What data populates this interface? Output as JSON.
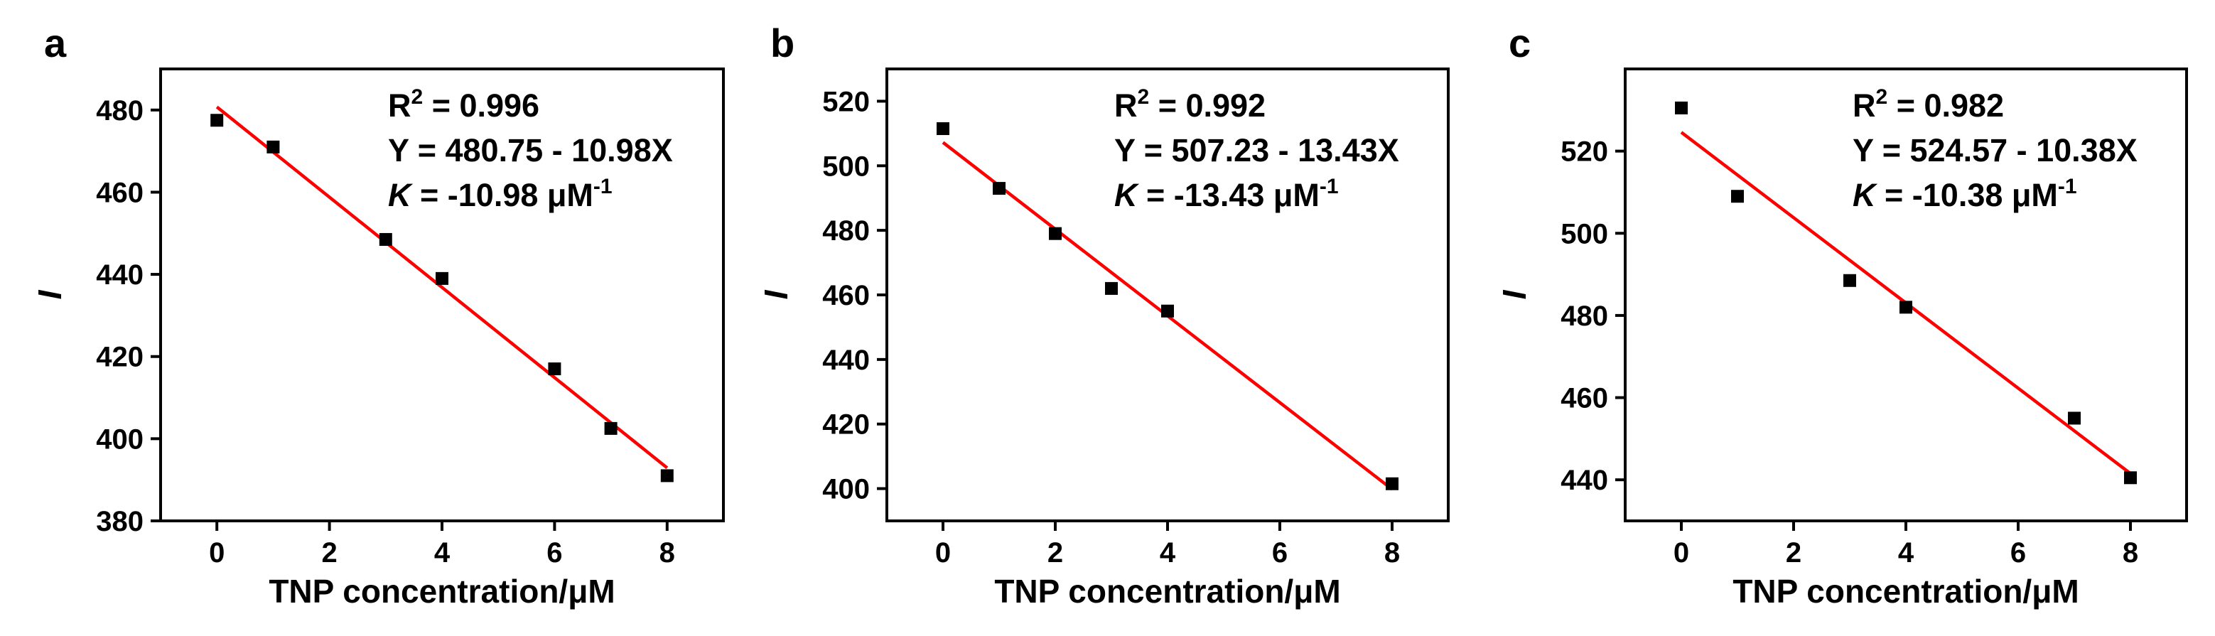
{
  "chart_data": [
    {
      "type": "scatter",
      "panel": "a",
      "xlabel": "TNP concentration/μM",
      "ylabel": "I",
      "xlim": [
        -1,
        9
      ],
      "ylim": [
        380,
        490
      ],
      "xticks": [
        0,
        2,
        4,
        6,
        8
      ],
      "yticks": [
        380,
        400,
        420,
        440,
        460,
        480
      ],
      "points": {
        "x": [
          0,
          1,
          3,
          4,
          6,
          7,
          8
        ],
        "y": [
          477.5,
          471,
          448.5,
          439,
          417,
          402.5,
          391
        ]
      },
      "fit": {
        "intercept": 480.75,
        "slope": -10.98,
        "x_range": [
          0,
          8
        ],
        "color": "#ff0000"
      },
      "annotations": {
        "r2_prefix": "R",
        "r2_sup": "2",
        "r2_value": " = 0.996",
        "equation": "Y = 480.75 - 10.98X",
        "k_symbol": "K",
        "k_value": " = -10.98 μM",
        "k_sup": "-1"
      },
      "grid": false
    },
    {
      "type": "scatter",
      "panel": "b",
      "xlabel": "TNP concentration/μM",
      "ylabel": "I",
      "xlim": [
        -1,
        9
      ],
      "ylim": [
        390,
        530
      ],
      "xticks": [
        0,
        2,
        4,
        6,
        8
      ],
      "yticks": [
        400,
        420,
        440,
        460,
        480,
        500,
        520
      ],
      "points": {
        "x": [
          0,
          1,
          2,
          3,
          4,
          8
        ],
        "y": [
          511.5,
          493,
          479,
          462,
          455,
          401.5
        ]
      },
      "fit": {
        "intercept": 507.23,
        "slope": -13.43,
        "x_range": [
          0,
          8
        ],
        "color": "#ff0000"
      },
      "annotations": {
        "r2_prefix": "R",
        "r2_sup": "2",
        "r2_value": " = 0.992",
        "equation": "Y = 507.23 - 13.43X",
        "k_symbol": "K",
        "k_value": " = -13.43 μM",
        "k_sup": "-1"
      },
      "grid": false
    },
    {
      "type": "scatter",
      "panel": "c",
      "xlabel": "TNP concentration/μM",
      "ylabel": "I",
      "xlim": [
        -1,
        9
      ],
      "ylim": [
        430,
        540
      ],
      "xticks": [
        0,
        2,
        4,
        6,
        8
      ],
      "yticks": [
        440,
        460,
        480,
        500,
        520
      ],
      "points": {
        "x": [
          0,
          1,
          3,
          4,
          7,
          8
        ],
        "y": [
          530.5,
          509,
          488.5,
          482,
          455,
          440.5
        ]
      },
      "fit": {
        "intercept": 524.57,
        "slope": -10.38,
        "x_range": [
          0,
          8
        ],
        "color": "#ff0000"
      },
      "annotations": {
        "r2_prefix": "R",
        "r2_sup": "2",
        "r2_value": " = 0.982",
        "equation": "Y = 524.57 - 10.38X",
        "k_symbol": "K",
        "k_value": " = -10.38 μM",
        "k_sup": "-1"
      },
      "grid": false
    }
  ]
}
